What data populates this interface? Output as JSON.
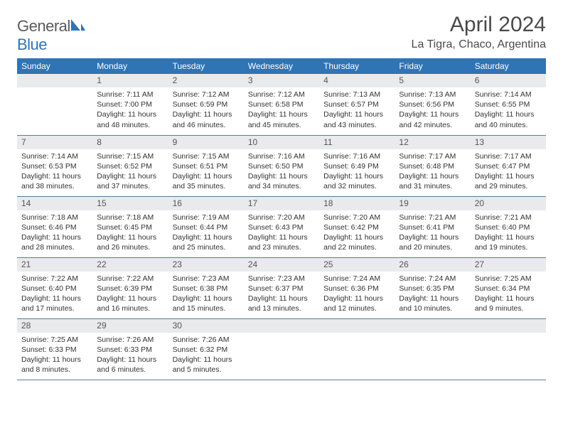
{
  "brand": {
    "name_a": "General",
    "name_b": "Blue"
  },
  "title": "April 2024",
  "location": "La Tigra, Chaco, Argentina",
  "colors": {
    "header_bg": "#2f74b5",
    "header_fg": "#ffffff",
    "daynum_bg": "#e9eaec",
    "border": "#5a7a9a",
    "text": "#333333"
  },
  "day_headers": [
    "Sunday",
    "Monday",
    "Tuesday",
    "Wednesday",
    "Thursday",
    "Friday",
    "Saturday"
  ],
  "weeks": [
    [
      {
        "n": "",
        "lines": []
      },
      {
        "n": "1",
        "lines": [
          "Sunrise: 7:11 AM",
          "Sunset: 7:00 PM",
          "Daylight: 11 hours",
          "and 48 minutes."
        ]
      },
      {
        "n": "2",
        "lines": [
          "Sunrise: 7:12 AM",
          "Sunset: 6:59 PM",
          "Daylight: 11 hours",
          "and 46 minutes."
        ]
      },
      {
        "n": "3",
        "lines": [
          "Sunrise: 7:12 AM",
          "Sunset: 6:58 PM",
          "Daylight: 11 hours",
          "and 45 minutes."
        ]
      },
      {
        "n": "4",
        "lines": [
          "Sunrise: 7:13 AM",
          "Sunset: 6:57 PM",
          "Daylight: 11 hours",
          "and 43 minutes."
        ]
      },
      {
        "n": "5",
        "lines": [
          "Sunrise: 7:13 AM",
          "Sunset: 6:56 PM",
          "Daylight: 11 hours",
          "and 42 minutes."
        ]
      },
      {
        "n": "6",
        "lines": [
          "Sunrise: 7:14 AM",
          "Sunset: 6:55 PM",
          "Daylight: 11 hours",
          "and 40 minutes."
        ]
      }
    ],
    [
      {
        "n": "7",
        "lines": [
          "Sunrise: 7:14 AM",
          "Sunset: 6:53 PM",
          "Daylight: 11 hours",
          "and 38 minutes."
        ]
      },
      {
        "n": "8",
        "lines": [
          "Sunrise: 7:15 AM",
          "Sunset: 6:52 PM",
          "Daylight: 11 hours",
          "and 37 minutes."
        ]
      },
      {
        "n": "9",
        "lines": [
          "Sunrise: 7:15 AM",
          "Sunset: 6:51 PM",
          "Daylight: 11 hours",
          "and 35 minutes."
        ]
      },
      {
        "n": "10",
        "lines": [
          "Sunrise: 7:16 AM",
          "Sunset: 6:50 PM",
          "Daylight: 11 hours",
          "and 34 minutes."
        ]
      },
      {
        "n": "11",
        "lines": [
          "Sunrise: 7:16 AM",
          "Sunset: 6:49 PM",
          "Daylight: 11 hours",
          "and 32 minutes."
        ]
      },
      {
        "n": "12",
        "lines": [
          "Sunrise: 7:17 AM",
          "Sunset: 6:48 PM",
          "Daylight: 11 hours",
          "and 31 minutes."
        ]
      },
      {
        "n": "13",
        "lines": [
          "Sunrise: 7:17 AM",
          "Sunset: 6:47 PM",
          "Daylight: 11 hours",
          "and 29 minutes."
        ]
      }
    ],
    [
      {
        "n": "14",
        "lines": [
          "Sunrise: 7:18 AM",
          "Sunset: 6:46 PM",
          "Daylight: 11 hours",
          "and 28 minutes."
        ]
      },
      {
        "n": "15",
        "lines": [
          "Sunrise: 7:18 AM",
          "Sunset: 6:45 PM",
          "Daylight: 11 hours",
          "and 26 minutes."
        ]
      },
      {
        "n": "16",
        "lines": [
          "Sunrise: 7:19 AM",
          "Sunset: 6:44 PM",
          "Daylight: 11 hours",
          "and 25 minutes."
        ]
      },
      {
        "n": "17",
        "lines": [
          "Sunrise: 7:20 AM",
          "Sunset: 6:43 PM",
          "Daylight: 11 hours",
          "and 23 minutes."
        ]
      },
      {
        "n": "18",
        "lines": [
          "Sunrise: 7:20 AM",
          "Sunset: 6:42 PM",
          "Daylight: 11 hours",
          "and 22 minutes."
        ]
      },
      {
        "n": "19",
        "lines": [
          "Sunrise: 7:21 AM",
          "Sunset: 6:41 PM",
          "Daylight: 11 hours",
          "and 20 minutes."
        ]
      },
      {
        "n": "20",
        "lines": [
          "Sunrise: 7:21 AM",
          "Sunset: 6:40 PM",
          "Daylight: 11 hours",
          "and 19 minutes."
        ]
      }
    ],
    [
      {
        "n": "21",
        "lines": [
          "Sunrise: 7:22 AM",
          "Sunset: 6:40 PM",
          "Daylight: 11 hours",
          "and 17 minutes."
        ]
      },
      {
        "n": "22",
        "lines": [
          "Sunrise: 7:22 AM",
          "Sunset: 6:39 PM",
          "Daylight: 11 hours",
          "and 16 minutes."
        ]
      },
      {
        "n": "23",
        "lines": [
          "Sunrise: 7:23 AM",
          "Sunset: 6:38 PM",
          "Daylight: 11 hours",
          "and 15 minutes."
        ]
      },
      {
        "n": "24",
        "lines": [
          "Sunrise: 7:23 AM",
          "Sunset: 6:37 PM",
          "Daylight: 11 hours",
          "and 13 minutes."
        ]
      },
      {
        "n": "25",
        "lines": [
          "Sunrise: 7:24 AM",
          "Sunset: 6:36 PM",
          "Daylight: 11 hours",
          "and 12 minutes."
        ]
      },
      {
        "n": "26",
        "lines": [
          "Sunrise: 7:24 AM",
          "Sunset: 6:35 PM",
          "Daylight: 11 hours",
          "and 10 minutes."
        ]
      },
      {
        "n": "27",
        "lines": [
          "Sunrise: 7:25 AM",
          "Sunset: 6:34 PM",
          "Daylight: 11 hours",
          "and 9 minutes."
        ]
      }
    ],
    [
      {
        "n": "28",
        "lines": [
          "Sunrise: 7:25 AM",
          "Sunset: 6:33 PM",
          "Daylight: 11 hours",
          "and 8 minutes."
        ]
      },
      {
        "n": "29",
        "lines": [
          "Sunrise: 7:26 AM",
          "Sunset: 6:33 PM",
          "Daylight: 11 hours",
          "and 6 minutes."
        ]
      },
      {
        "n": "30",
        "lines": [
          "Sunrise: 7:26 AM",
          "Sunset: 6:32 PM",
          "Daylight: 11 hours",
          "and 5 minutes."
        ]
      },
      {
        "n": "",
        "lines": []
      },
      {
        "n": "",
        "lines": []
      },
      {
        "n": "",
        "lines": []
      },
      {
        "n": "",
        "lines": []
      }
    ]
  ]
}
